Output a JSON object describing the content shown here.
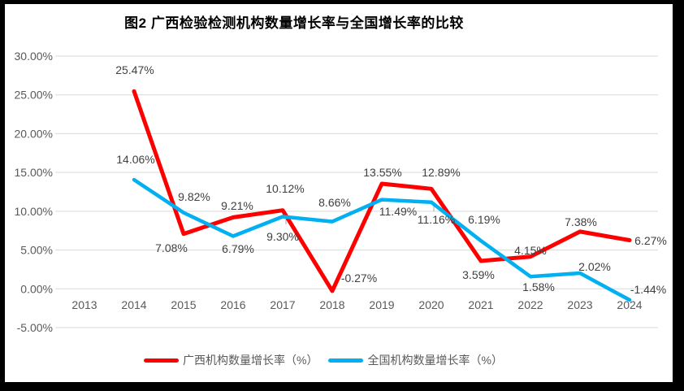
{
  "title": "图2 广西检验检测机构数量增长率与全国增长率的比较",
  "chart_data": {
    "type": "line",
    "title": "图2 广西检验检测机构数量增长率与全国增长率的比较",
    "categories": [
      "2013",
      "2014",
      "2015",
      "2016",
      "2017",
      "2018",
      "2019",
      "2020",
      "2021",
      "2022",
      "2023",
      "2024"
    ],
    "series": [
      {
        "id": "guangxi",
        "name": "广西机构数量增长率（%）",
        "color": "#FF0000",
        "values": [
          null,
          25.47,
          7.08,
          9.21,
          10.12,
          -0.27,
          13.55,
          12.89,
          3.59,
          4.15,
          7.38,
          6.27
        ],
        "labels": [
          null,
          "25.47%",
          "7.08%",
          "9.21%",
          "10.12%",
          "-0.27%",
          "13.55%",
          "12.89%",
          "3.59%",
          "4.15%",
          "7.38%",
          "6.27%"
        ]
      },
      {
        "id": "national",
        "name": "全国机构数量增长率（%）",
        "color": "#00B0F0",
        "values": [
          null,
          14.06,
          9.82,
          6.79,
          9.3,
          8.66,
          11.49,
          11.16,
          6.19,
          1.58,
          2.02,
          -1.44
        ],
        "labels": [
          null,
          "14.06%",
          "9.82%",
          "6.79%",
          "9.30%",
          "8.66%",
          "11.49%",
          "11.16%",
          "6.19%",
          "1.58%",
          "2.02%",
          "-1.44%"
        ]
      }
    ],
    "y_axis": {
      "min": -5,
      "max": 30,
      "step": 5,
      "tick_labels": [
        "30.00%",
        "25.00%",
        "20.00%",
        "15.00%",
        "10.00%",
        "5.00%",
        "0.00%",
        "-5.00%"
      ]
    },
    "grid": true,
    "legend_position": "bottom",
    "label_positions": {
      "guangxi": [
        null,
        [
          160,
          86
        ],
        [
          205,
          305
        ],
        [
          286,
          253
        ],
        [
          345,
          232
        ],
        [
          436,
          342
        ],
        [
          465,
          212
        ],
        [
          537,
          212
        ],
        [
          583,
          338
        ],
        [
          647,
          308
        ],
        [
          709,
          273
        ],
        [
          795,
          296
        ]
      ],
      "national": [
        null,
        [
          161,
          196
        ],
        [
          233,
          242
        ],
        [
          287,
          306
        ],
        [
          342,
          291
        ],
        [
          406,
          249
        ],
        [
          484,
          260
        ],
        [
          531,
          270
        ],
        [
          590,
          270
        ],
        [
          657,
          353
        ],
        [
          726,
          328
        ],
        [
          792,
          356
        ]
      ]
    }
  },
  "colors": {
    "frame": "#000000",
    "background": "#FFFFFF",
    "grid": "#D9D9D9",
    "tick_text": "#595959",
    "data_label_text": "#404040",
    "leader_line": "#A6A6A6",
    "guangxi_series": "#FF0000",
    "national_series": "#00B0F0"
  }
}
